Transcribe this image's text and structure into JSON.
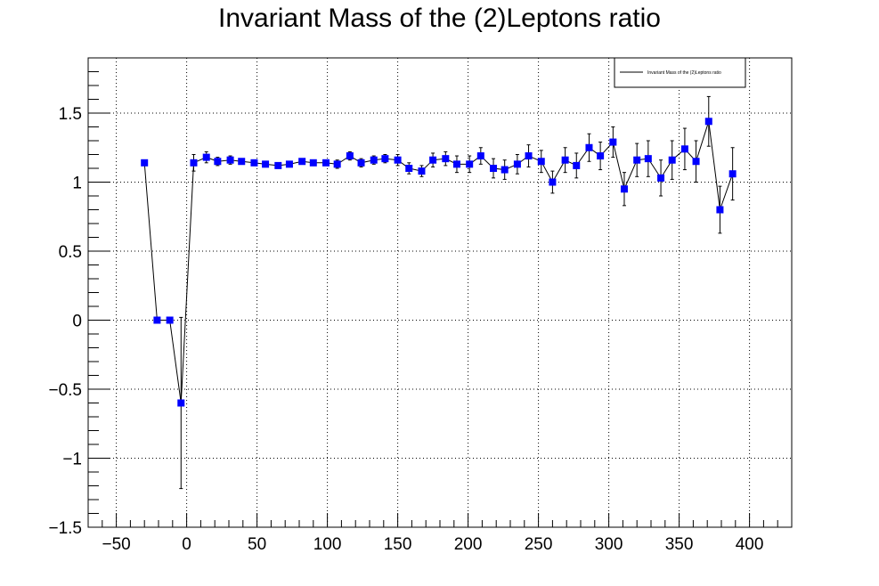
{
  "chart_data": {
    "type": "scatter",
    "title": "Invariant Mass of the (2)Leptons ratio",
    "xlabel": "",
    "ylabel": "",
    "xlim": [
      -70,
      430
    ],
    "ylim": [
      -1.5,
      1.9
    ],
    "x_ticks": [
      -50,
      0,
      50,
      100,
      150,
      200,
      250,
      300,
      350,
      400
    ],
    "x_tick_labels": [
      "−50",
      "0",
      "50",
      "100",
      "150",
      "200",
      "250",
      "300",
      "350",
      "400"
    ],
    "y_ticks": [
      -1.5,
      -1,
      -0.5,
      0,
      0.5,
      1,
      1.5
    ],
    "y_tick_labels": [
      "−1.5",
      "−1",
      "−0.5",
      "0",
      "0.5",
      "1",
      "1.5"
    ],
    "grid": true,
    "legend_position": "top-right",
    "series": [
      {
        "name": "Invariant Mass of the (2)Leptons ratio",
        "color": "#0000ff",
        "marker": "square",
        "x": [
          -30,
          -21,
          -12,
          -4,
          5,
          14,
          22,
          31,
          39,
          48,
          56,
          65,
          73,
          82,
          90,
          99,
          107,
          116,
          124,
          133,
          141,
          150,
          158,
          167,
          175,
          184,
          192,
          201,
          209,
          218,
          226,
          235,
          243,
          252,
          260,
          269,
          277,
          286,
          294,
          303,
          311,
          320,
          328,
          337,
          345,
          354,
          362,
          371,
          379,
          388
        ],
        "y": [
          1.14,
          0.0,
          0.0,
          -0.6,
          1.14,
          1.18,
          1.15,
          1.16,
          1.15,
          1.14,
          1.13,
          1.12,
          1.13,
          1.15,
          1.14,
          1.14,
          1.13,
          1.19,
          1.14,
          1.16,
          1.17,
          1.16,
          1.1,
          1.08,
          1.16,
          1.17,
          1.13,
          1.13,
          1.19,
          1.1,
          1.09,
          1.13,
          1.19,
          1.15,
          1.0,
          1.16,
          1.12,
          1.25,
          1.19,
          1.29,
          0.95,
          1.16,
          1.17,
          1.03,
          1.16,
          1.24,
          1.15,
          1.44,
          0.8,
          1.06
        ],
        "yerr": [
          0.0,
          0.0,
          0.0,
          0.62,
          0.06,
          0.04,
          0.03,
          0.03,
          0.02,
          0.02,
          0.02,
          0.02,
          0.02,
          0.02,
          0.02,
          0.02,
          0.03,
          0.03,
          0.03,
          0.03,
          0.03,
          0.04,
          0.04,
          0.04,
          0.05,
          0.05,
          0.06,
          0.06,
          0.06,
          0.07,
          0.07,
          0.07,
          0.08,
          0.08,
          0.08,
          0.09,
          0.09,
          0.1,
          0.1,
          0.11,
          0.12,
          0.12,
          0.13,
          0.13,
          0.14,
          0.15,
          0.15,
          0.18,
          0.17,
          0.19
        ]
      }
    ]
  }
}
